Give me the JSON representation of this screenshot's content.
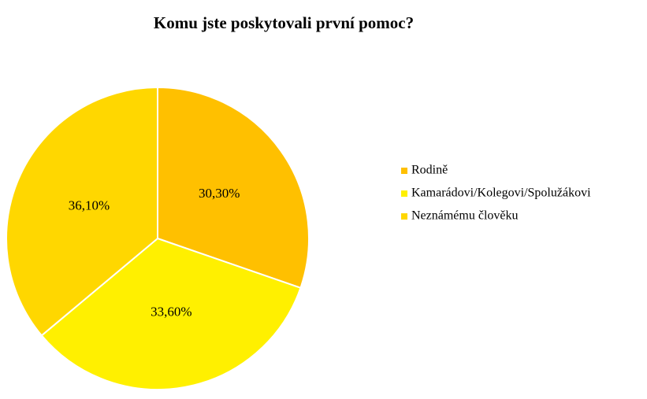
{
  "chart_data": {
    "type": "pie",
    "title": "Komu jste poskytovali první pomoc?",
    "categories": [
      "Rodině",
      "Kamarádovi/Kolegovi/Spolužákovi",
      "Neznámému člověku"
    ],
    "values": [
      30.3,
      33.6,
      36.1
    ],
    "value_labels": [
      "30,30%",
      "33,60%",
      "36,10%"
    ],
    "colors": [
      "#FFC000",
      "#FFF000",
      "#FFD700"
    ],
    "legend": "right"
  }
}
